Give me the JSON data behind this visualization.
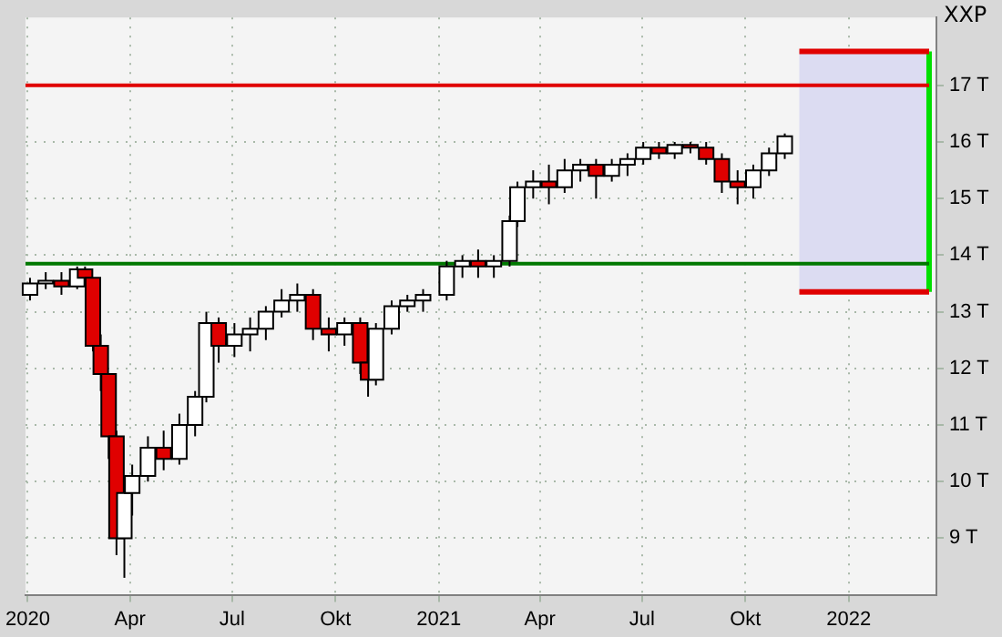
{
  "chart_data": {
    "type": "candlestick",
    "title": "XXP",
    "x": [
      "2020-01-03",
      "2020-01-17",
      "2020-01-31",
      "2020-02-14",
      "2020-02-21",
      "2020-02-28",
      "2020-03-06",
      "2020-03-13",
      "2020-03-20",
      "2020-03-27",
      "2020-04-03",
      "2020-04-17",
      "2020-05-01",
      "2020-05-15",
      "2020-05-29",
      "2020-06-08",
      "2020-06-19",
      "2020-07-03",
      "2020-07-17",
      "2020-07-31",
      "2020-08-14",
      "2020-08-28",
      "2020-09-11",
      "2020-09-25",
      "2020-10-09",
      "2020-10-23",
      "2020-10-30",
      "2020-11-06",
      "2020-11-20",
      "2020-12-04",
      "2020-12-18",
      "2021-01-08",
      "2021-01-22",
      "2021-02-05",
      "2021-02-19",
      "2021-03-05",
      "2021-03-12",
      "2021-03-26",
      "2021-04-09",
      "2021-04-23",
      "2021-05-07",
      "2021-05-21",
      "2021-06-04",
      "2021-06-18",
      "2021-07-02",
      "2021-07-16",
      "2021-07-30",
      "2021-08-13",
      "2021-08-27",
      "2021-09-10",
      "2021-09-24",
      "2021-10-08",
      "2021-10-22",
      "2021-11-05"
    ],
    "ohlc": [
      [
        13.3,
        13.6,
        13.2,
        13.5
      ],
      [
        13.5,
        13.7,
        13.4,
        13.55
      ],
      [
        13.55,
        13.7,
        13.3,
        13.45
      ],
      [
        13.45,
        13.8,
        13.4,
        13.75
      ],
      [
        13.75,
        13.8,
        13.5,
        13.6
      ],
      [
        13.6,
        13.6,
        12.3,
        12.4
      ],
      [
        12.4,
        12.6,
        11.6,
        11.9
      ],
      [
        11.9,
        11.9,
        10.4,
        10.8
      ],
      [
        10.8,
        10.9,
        8.7,
        9.0
      ],
      [
        9.0,
        10.1,
        8.3,
        9.8
      ],
      [
        9.8,
        10.3,
        9.4,
        10.1
      ],
      [
        10.1,
        10.8,
        10.0,
        10.6
      ],
      [
        10.6,
        10.9,
        10.2,
        10.4
      ],
      [
        10.4,
        11.2,
        10.3,
        11.0
      ],
      [
        11.0,
        11.6,
        10.8,
        11.5
      ],
      [
        11.5,
        13.0,
        11.4,
        12.8
      ],
      [
        12.8,
        12.9,
        12.1,
        12.4
      ],
      [
        12.4,
        12.8,
        12.2,
        12.6
      ],
      [
        12.6,
        12.9,
        12.3,
        12.7
      ],
      [
        12.7,
        13.1,
        12.5,
        13.0
      ],
      [
        13.0,
        13.4,
        12.9,
        13.2
      ],
      [
        13.2,
        13.5,
        13.0,
        13.3
      ],
      [
        13.3,
        13.4,
        12.5,
        12.7
      ],
      [
        12.7,
        12.9,
        12.3,
        12.6
      ],
      [
        12.6,
        12.9,
        12.4,
        12.8
      ],
      [
        12.8,
        12.9,
        11.9,
        12.1
      ],
      [
        12.1,
        12.3,
        11.5,
        11.8
      ],
      [
        11.8,
        12.8,
        11.7,
        12.7
      ],
      [
        12.7,
        13.2,
        12.6,
        13.1
      ],
      [
        13.1,
        13.3,
        13.0,
        13.2
      ],
      [
        13.2,
        13.4,
        13.0,
        13.3
      ],
      [
        13.3,
        13.9,
        13.2,
        13.8
      ],
      [
        13.8,
        14.0,
        13.6,
        13.9
      ],
      [
        13.9,
        14.1,
        13.6,
        13.8
      ],
      [
        13.8,
        14.0,
        13.6,
        13.9
      ],
      [
        13.9,
        14.7,
        13.8,
        14.6
      ],
      [
        14.6,
        15.3,
        14.5,
        15.2
      ],
      [
        15.2,
        15.5,
        15.0,
        15.3
      ],
      [
        15.3,
        15.6,
        14.9,
        15.2
      ],
      [
        15.2,
        15.7,
        15.1,
        15.5
      ],
      [
        15.5,
        15.7,
        15.3,
        15.6
      ],
      [
        15.6,
        15.7,
        15.0,
        15.4
      ],
      [
        15.4,
        15.7,
        15.3,
        15.6
      ],
      [
        15.6,
        15.8,
        15.4,
        15.7
      ],
      [
        15.7,
        16.0,
        15.6,
        15.9
      ],
      [
        15.9,
        16.0,
        15.7,
        15.8
      ],
      [
        15.8,
        16.0,
        15.7,
        15.95
      ],
      [
        15.95,
        16.0,
        15.8,
        15.9
      ],
      [
        15.9,
        16.0,
        15.6,
        15.7
      ],
      [
        15.7,
        15.8,
        15.1,
        15.3
      ],
      [
        15.3,
        15.5,
        14.9,
        15.2
      ],
      [
        15.2,
        15.6,
        15.0,
        15.5
      ],
      [
        15.5,
        15.9,
        15.4,
        15.8
      ],
      [
        15.8,
        16.15,
        15.7,
        16.1
      ]
    ],
    "xlim": [
      "2019-12-30",
      "2022-03-20"
    ],
    "xticks": [
      {
        "value": "2020-01-01",
        "label": "2020"
      },
      {
        "value": "2020-04-01",
        "label": "Apr"
      },
      {
        "value": "2020-07-01",
        "label": "Jul"
      },
      {
        "value": "2020-10-01",
        "label": "Okt"
      },
      {
        "value": "2021-01-01",
        "label": "2021"
      },
      {
        "value": "2021-04-01",
        "label": "Apr"
      },
      {
        "value": "2021-07-01",
        "label": "Jul"
      },
      {
        "value": "2021-10-01",
        "label": "Okt"
      },
      {
        "value": "2022-01-01",
        "label": "2022"
      }
    ],
    "ylim": [
      8.0,
      18.2
    ],
    "yticks": [
      {
        "value": 9,
        "label": "9 T"
      },
      {
        "value": 10,
        "label": "10 T"
      },
      {
        "value": 11,
        "label": "11 T"
      },
      {
        "value": 12,
        "label": "12 T"
      },
      {
        "value": 13,
        "label": "13 T"
      },
      {
        "value": 14,
        "label": "14 T"
      },
      {
        "value": 15,
        "label": "15 T"
      },
      {
        "value": 16,
        "label": "16 T"
      },
      {
        "value": 17,
        "label": "17 T"
      }
    ],
    "ref_lines": [
      {
        "axis": "y",
        "value": 17.0,
        "color": "#e00000"
      },
      {
        "axis": "y",
        "value": 13.85,
        "color": "#007800"
      },
      {
        "axis": "y",
        "value": 17.6,
        "color": "#e00000"
      },
      {
        "axis": "y",
        "value": 13.35,
        "color": "#e00000"
      }
    ],
    "bands": [
      {
        "axis": "y",
        "from": 13.35,
        "to": 17.6,
        "color": "#dcdcf2"
      }
    ],
    "grid": true,
    "legend": false
  }
}
